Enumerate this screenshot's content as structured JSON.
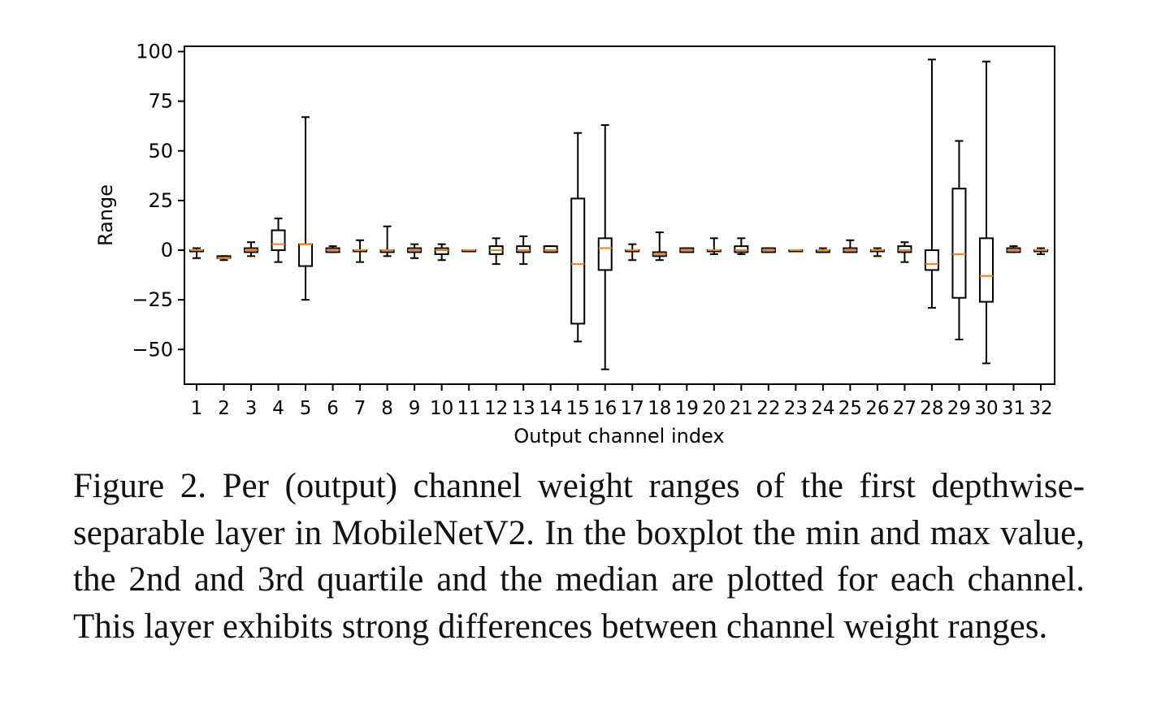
{
  "chart_data": {
    "type": "boxplot",
    "xlabel": "Output channel index",
    "ylabel": "Range",
    "ylim": [
      -67,
      100
    ],
    "yticks": [
      100,
      75,
      50,
      25,
      0,
      -25,
      -50
    ],
    "ytick_labels": [
      "100",
      "75",
      "50",
      "25",
      "0",
      "−25",
      "−50"
    ],
    "median_color": "#ff7f0e",
    "box_color": "#000000",
    "channels": [
      {
        "label": "1",
        "min": -4,
        "q1": 0,
        "median": 0,
        "q3": 0,
        "max": 1
      },
      {
        "label": "2",
        "min": -5,
        "q1": -4,
        "median": -4,
        "q3": -3,
        "max": -3
      },
      {
        "label": "3",
        "min": -3,
        "q1": -1,
        "median": 0,
        "q3": 1,
        "max": 4
      },
      {
        "label": "4",
        "min": -6,
        "q1": 0,
        "median": 3,
        "q3": 10,
        "max": 16
      },
      {
        "label": "5",
        "min": -25,
        "q1": -8,
        "median": 3,
        "q3": 3,
        "max": 67
      },
      {
        "label": "6",
        "min": -1,
        "q1": -1,
        "median": 0,
        "q3": 1,
        "max": 2
      },
      {
        "label": "7",
        "min": -6,
        "q1": 0,
        "median": 0,
        "q3": 0,
        "max": 5
      },
      {
        "label": "8",
        "min": -3,
        "q1": -1,
        "median": 0,
        "q3": 0,
        "max": 12
      },
      {
        "label": "9",
        "min": -4,
        "q1": -1,
        "median": 0,
        "q3": 1,
        "max": 3
      },
      {
        "label": "10",
        "min": -5,
        "q1": -2,
        "median": 0,
        "q3": 1,
        "max": 3
      },
      {
        "label": "11",
        "min": 0,
        "q1": 0,
        "median": 0,
        "q3": 0,
        "max": 0
      },
      {
        "label": "12",
        "min": -7,
        "q1": -2,
        "median": 0,
        "q3": 2,
        "max": 6
      },
      {
        "label": "13",
        "min": -7,
        "q1": -1,
        "median": 0,
        "q3": 2,
        "max": 7
      },
      {
        "label": "14",
        "min": -1,
        "q1": -1,
        "median": 0,
        "q3": 2,
        "max": 2
      },
      {
        "label": "15",
        "min": -46,
        "q1": -37,
        "median": -7,
        "q3": 26,
        "max": 59
      },
      {
        "label": "16",
        "min": -60,
        "q1": -10,
        "median": 1,
        "q3": 6,
        "max": 63
      },
      {
        "label": "17",
        "min": -5,
        "q1": 0,
        "median": 0,
        "q3": 0,
        "max": 3
      },
      {
        "label": "18",
        "min": -5,
        "q1": -3,
        "median": -2,
        "q3": -1,
        "max": 9
      },
      {
        "label": "19",
        "min": -1,
        "q1": -1,
        "median": 0,
        "q3": 1,
        "max": 1
      },
      {
        "label": "20",
        "min": -2,
        "q1": 0,
        "median": 0,
        "q3": 0,
        "max": 6
      },
      {
        "label": "21",
        "min": -2,
        "q1": -1,
        "median": 0,
        "q3": 2,
        "max": 6
      },
      {
        "label": "22",
        "min": -1,
        "q1": -1,
        "median": 0,
        "q3": 1,
        "max": 1
      },
      {
        "label": "23",
        "min": 0,
        "q1": 0,
        "median": 0,
        "q3": 0,
        "max": 0
      },
      {
        "label": "24",
        "min": -1,
        "q1": -1,
        "median": 0,
        "q3": 0,
        "max": 1
      },
      {
        "label": "25",
        "min": -1,
        "q1": -1,
        "median": 0,
        "q3": 1,
        "max": 5
      },
      {
        "label": "26",
        "min": -3,
        "q1": 0,
        "median": 0,
        "q3": 0,
        "max": 1
      },
      {
        "label": "27",
        "min": -6,
        "q1": -1,
        "median": 0,
        "q3": 2,
        "max": 4
      },
      {
        "label": "28",
        "min": -29,
        "q1": -10,
        "median": -7,
        "q3": 0,
        "max": 96
      },
      {
        "label": "29",
        "min": -45,
        "q1": -24,
        "median": -2,
        "q3": 31,
        "max": 55
      },
      {
        "label": "30",
        "min": -57,
        "q1": -26,
        "median": -13,
        "q3": 6,
        "max": 95
      },
      {
        "label": "31",
        "min": -1,
        "q1": -1,
        "median": 0,
        "q3": 1,
        "max": 2
      },
      {
        "label": "32",
        "min": -2,
        "q1": 0,
        "median": 0,
        "q3": 0,
        "max": 1
      }
    ]
  },
  "caption": "Figure 2. Per (output) channel weight ranges of the first depthwise-separable layer in MobileNetV2. In the boxplot the min and max value, the 2nd and 3rd quartile and the median are plotted for each channel. This layer exhibits strong differences between channel weight ranges."
}
